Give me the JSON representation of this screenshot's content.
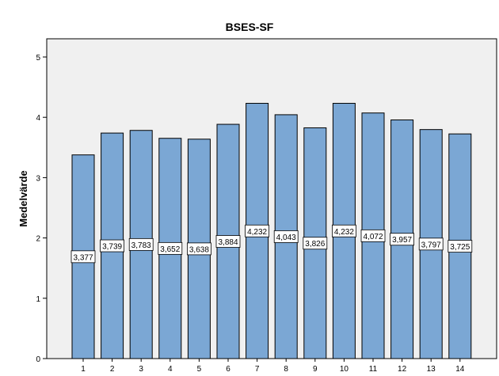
{
  "chart_data": {
    "type": "bar",
    "title": "BSES-SF",
    "xlabel": "",
    "ylabel": "Medelvärde",
    "categories": [
      "1",
      "2",
      "3",
      "4",
      "5",
      "6",
      "7",
      "8",
      "9",
      "10",
      "11",
      "12",
      "13",
      "14"
    ],
    "values": [
      3.377,
      3.739,
      3.783,
      3.652,
      3.638,
      3.884,
      4.232,
      4.043,
      3.826,
      4.232,
      4.072,
      3.957,
      3.797,
      3.725
    ],
    "data_labels": [
      "3,377",
      "3,739",
      "3,783",
      "3,652",
      "3,638",
      "3,884",
      "4,232",
      "4,043",
      "3,826",
      "4,232",
      "4,072",
      "3,957",
      "3,797",
      "3,725"
    ],
    "ylim": [
      0,
      5
    ],
    "yticks": [
      "0",
      "1",
      "2",
      "3",
      "4",
      "5"
    ],
    "grid": false,
    "legend": "none",
    "colors": {
      "bar_fill": "#7ba7d4",
      "bar_stroke": "#000000",
      "plot_background": "#f0f0f0",
      "plot_border": "#000000",
      "label_box_fill": "#ffffff"
    }
  }
}
